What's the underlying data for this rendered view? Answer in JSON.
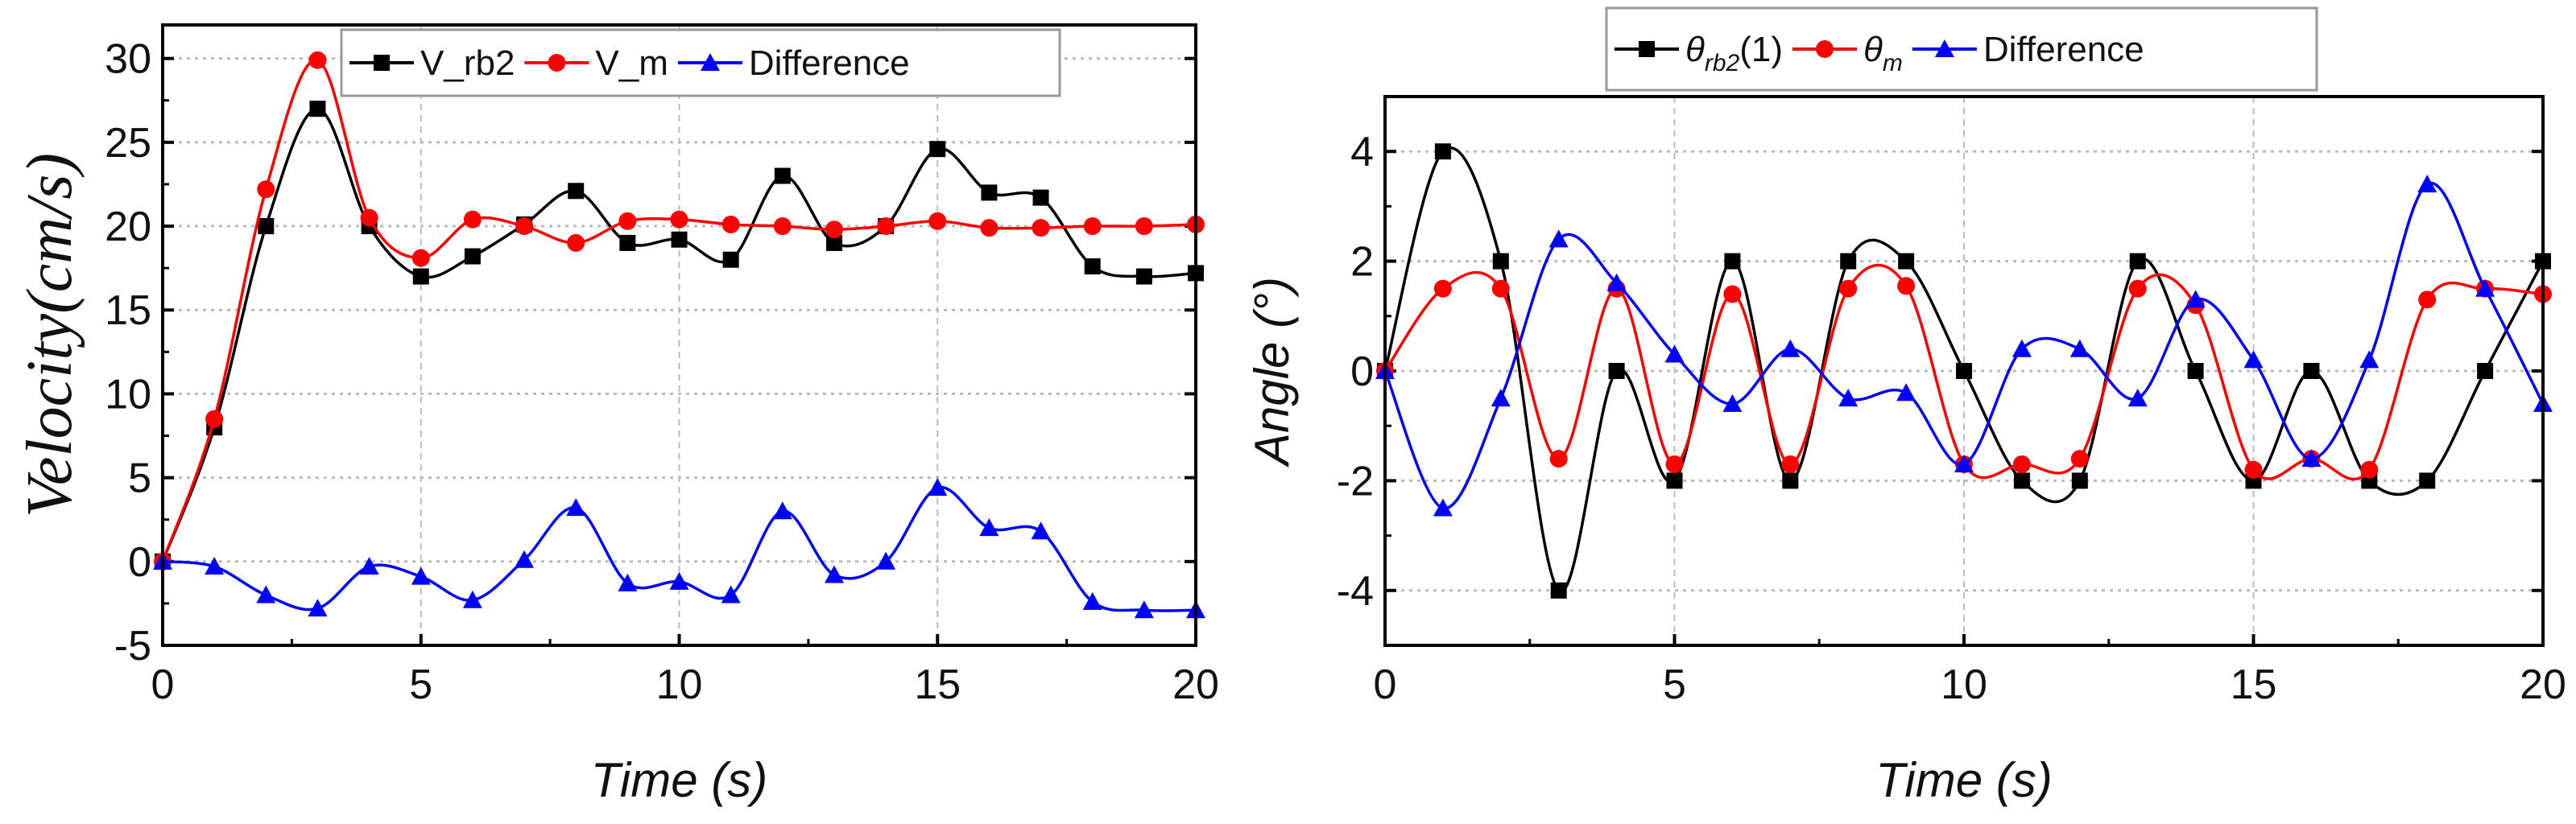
{
  "chart_data": [
    {
      "type": "line",
      "title": "",
      "xlabel": "Time (s)",
      "ylabel": "Velocity(cm/s)",
      "xlim": [
        0,
        20
      ],
      "ylim": [
        -5,
        32
      ],
      "xticks": [
        0,
        5,
        10,
        15,
        20
      ],
      "yticks": [
        -5,
        0,
        5,
        10,
        15,
        20,
        25,
        30
      ],
      "grid": true,
      "legend_placement": "top-center-inside",
      "x": [
        0,
        1,
        2,
        3,
        4,
        5,
        6,
        7,
        8,
        9,
        10,
        11,
        12,
        13,
        14,
        15,
        16,
        17,
        18,
        19,
        20
      ],
      "series": [
        {
          "name": "V_rb2",
          "label": {
            "base": "V_rb2",
            "sub": "",
            "suffix": ""
          },
          "color": "#000000",
          "marker": "square",
          "values": [
            0,
            8,
            20,
            27,
            20,
            17,
            18.2,
            20.1,
            22.1,
            19,
            19.2,
            18,
            23,
            19,
            20,
            24.6,
            22,
            21.7,
            17.6,
            17,
            17.2
          ]
        },
        {
          "name": "V_m",
          "label": {
            "base": "V_m",
            "sub": "",
            "suffix": ""
          },
          "color": "#ff0000",
          "marker": "circle",
          "values": [
            0,
            8.5,
            22.2,
            29.9,
            20.5,
            18.1,
            20.4,
            20,
            19,
            20.3,
            20.4,
            20.1,
            20,
            19.8,
            20,
            20.3,
            19.9,
            19.9,
            20,
            20,
            20.1
          ]
        },
        {
          "name": "Difference",
          "label": {
            "base": "Difference",
            "sub": "",
            "suffix": ""
          },
          "color": "#0000ff",
          "marker": "triangle",
          "values": [
            0,
            -0.3,
            -2,
            -2.8,
            -0.3,
            -0.9,
            -2.3,
            0.1,
            3.2,
            -1.3,
            -1.2,
            -2,
            3,
            -0.8,
            0,
            4.4,
            2,
            1.8,
            -2.4,
            -2.9,
            -2.9
          ]
        }
      ]
    },
    {
      "type": "line",
      "title": "",
      "xlabel": "Time (s)",
      "ylabel": "Angle (°)",
      "ylabel_parts": {
        "base": "Angle (",
        "sup": "o",
        "suffix": ")"
      },
      "xlim": [
        0,
        20
      ],
      "ylim": [
        -5,
        5
      ],
      "xticks": [
        0,
        5,
        10,
        15,
        20
      ],
      "yticks": [
        -4,
        -2,
        0,
        2,
        4
      ],
      "grid": true,
      "legend_placement": "top-outside",
      "x": [
        0,
        1,
        2,
        3,
        4,
        5,
        6,
        7,
        8,
        9,
        10,
        11,
        12,
        13,
        14,
        15,
        16,
        17,
        18,
        19,
        20
      ],
      "series": [
        {
          "name": "θrb2(1)",
          "label": {
            "base": "θ",
            "sub": "rb2",
            "suffix": "(1)"
          },
          "color": "#000000",
          "marker": "square",
          "values": [
            0,
            4,
            2,
            -4,
            0,
            -2,
            2,
            -2,
            2,
            2,
            0,
            -2,
            -2,
            2,
            0,
            -2,
            0,
            -2,
            -2,
            0,
            2
          ]
        },
        {
          "name": "θm",
          "label": {
            "base": "θ",
            "sub": "m",
            "suffix": ""
          },
          "color": "#ff0000",
          "marker": "circle",
          "values": [
            0,
            1.5,
            1.5,
            -1.6,
            1.5,
            -1.7,
            1.4,
            -1.7,
            1.5,
            1.55,
            -1.7,
            -1.7,
            -1.6,
            1.5,
            1.2,
            -1.8,
            -1.6,
            -1.8,
            1.3,
            1.5,
            1.4
          ]
        },
        {
          "name": "Difference",
          "label": {
            "base": "Difference",
            "sub": "",
            "suffix": ""
          },
          "color": "#0000ff",
          "marker": "triangle",
          "values": [
            0,
            -2.5,
            -0.5,
            2.4,
            1.6,
            0.3,
            -0.6,
            0.4,
            -0.5,
            -0.4,
            -1.7,
            0.4,
            0.4,
            -0.5,
            1.3,
            0.2,
            -1.6,
            0.2,
            3.4,
            1.5,
            -0.6
          ]
        }
      ]
    }
  ]
}
